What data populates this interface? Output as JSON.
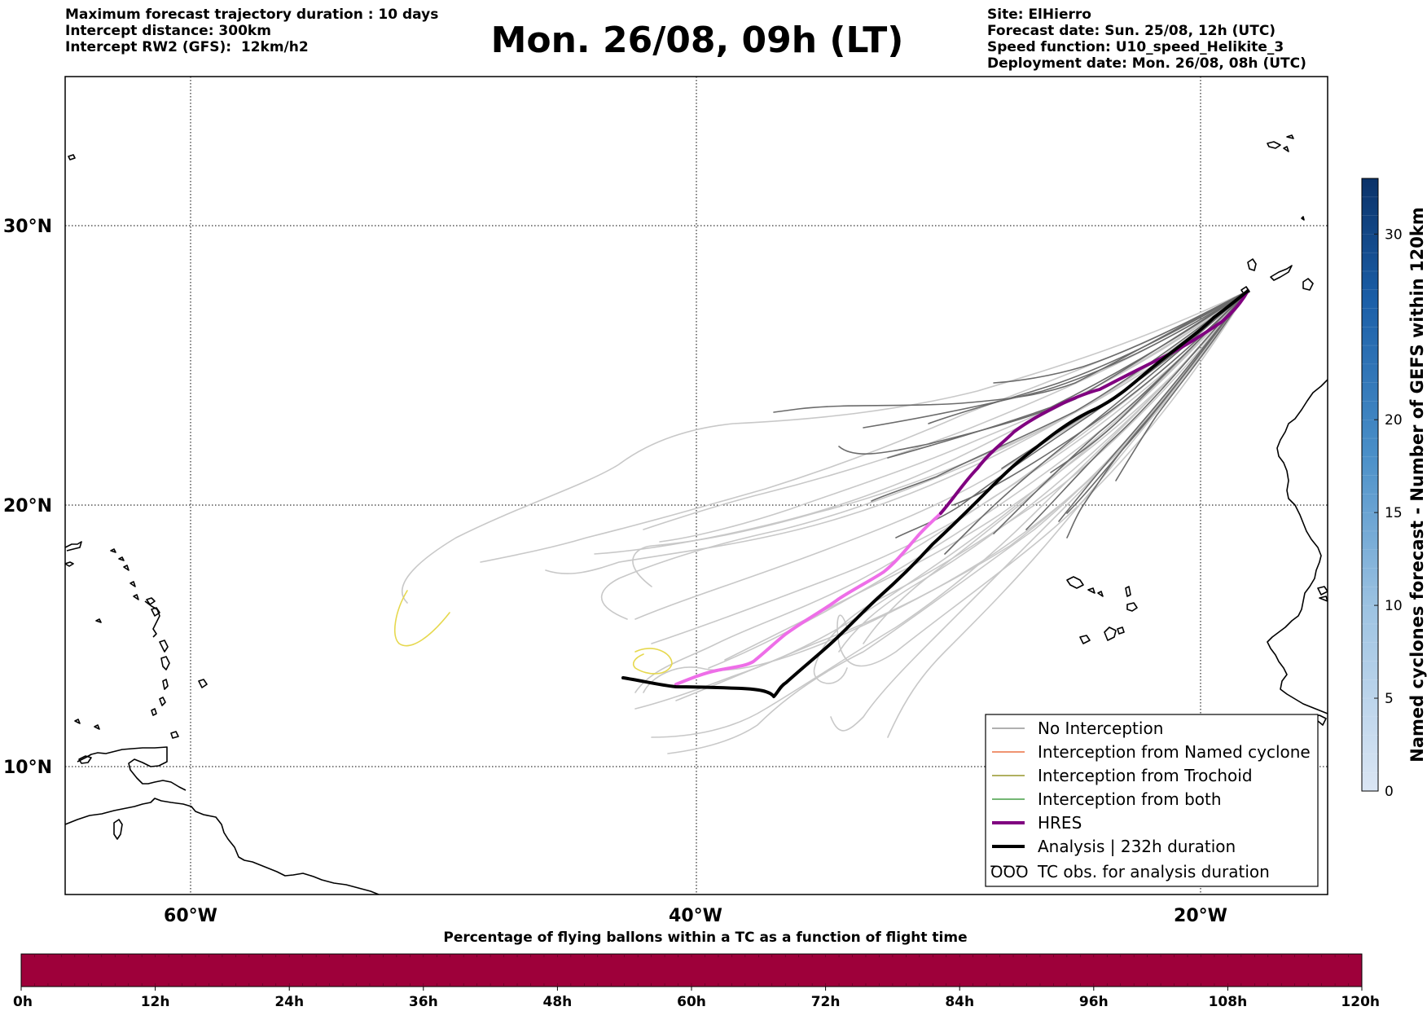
{
  "header_left": [
    "Maximum forecast trajectory duration : 10 days",
    "Intercept distance: 300km",
    "Intercept RW2 (GFS):  12km/h2"
  ],
  "title": "Mon. 26/08, 09h (LT)",
  "header_right": [
    "Site: ElHierro",
    "Forecast date: Sun. 25/08, 12h (UTC)",
    "Speed function: U10_speed_Helikite_3",
    "Deployment date: Mon. 26/08, 08h (UTC)"
  ],
  "map": {
    "lon_range": [
      -65,
      15
    ],
    "lat_range": [
      5,
      35
    ],
    "lon_ticks": [
      {
        "lon": -60,
        "label": "60°W"
      },
      {
        "lon": -40,
        "label": "40°W"
      },
      {
        "lon": -20,
        "label": "20°W"
      }
    ],
    "lat_ticks": [
      {
        "lat": 30,
        "label": "30°N"
      },
      {
        "lat": 20,
        "label": "20°N"
      },
      {
        "lat": 10,
        "label": "10°N"
      }
    ],
    "colors": {
      "no_interception_dark": "#6b6b6b",
      "no_interception_light": "#c8c8c8",
      "named_cyclone": "#e8541e",
      "trochoid": "#808000",
      "both": "#228b22",
      "hres": "#800080",
      "hres_early": "#ee6ee8",
      "analysis": "#000000",
      "yellow_loop": "#e6d84e"
    }
  },
  "legend": {
    "items": [
      {
        "label": "No Interception",
        "color": "#808080",
        "width": 1.2
      },
      {
        "label": "Interception from Named cyclone",
        "color": "#e8541e",
        "width": 1.2
      },
      {
        "label": "Interception from Trochoid",
        "color": "#808000",
        "width": 1.2
      },
      {
        "label": "Interception from both",
        "color": "#228b22",
        "width": 1.2
      },
      {
        "label": "HRES",
        "color": "#800080",
        "width": 4
      },
      {
        "label": "Analysis | 232h duration",
        "color": "#000000",
        "width": 4
      }
    ],
    "tc_symbol": "ꝹꝹꝹ",
    "tc_label": "TC obs. for analysis duration"
  },
  "colorbar_right": {
    "title": "Named cyclones forecast - Number of GEFS within 120km",
    "min": 0,
    "max": 33,
    "ticks": [
      0,
      5,
      10,
      15,
      20,
      30
    ],
    "color_low": "#dbe6f4",
    "color_high": "#0a3269"
  },
  "colorbar_bottom": {
    "title": "Percentage of flying ballons within a TC as a function of flight time",
    "ticks": [
      "0h",
      "12h",
      "24h",
      "36h",
      "48h",
      "60h",
      "72h",
      "84h",
      "96h",
      "108h",
      "120h"
    ],
    "fill_color": "#9e003a"
  }
}
